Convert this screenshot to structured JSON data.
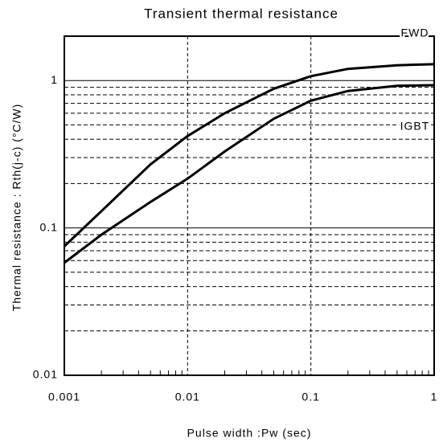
{
  "chart_data": {
    "type": "line",
    "title": "Transient thermal resistance",
    "xlabel": "Pulse width :Pw (sec)",
    "ylabel": "Thermal resistance : Rth(j-c)   (°C/W)",
    "xscale": "log",
    "yscale": "log",
    "x": [
      0.001,
      0.002,
      0.005,
      0.01,
      0.02,
      0.05,
      0.1,
      0.2,
      0.5,
      1
    ],
    "series": [
      {
        "name": "FWD",
        "color": "#000000",
        "values": [
          0.075,
          0.13,
          0.27,
          0.42,
          0.6,
          0.88,
          1.07,
          1.2,
          1.27,
          1.29
        ]
      },
      {
        "name": "IGBT",
        "color": "#000000",
        "values": [
          0.058,
          0.09,
          0.15,
          0.216,
          0.33,
          0.55,
          0.73,
          0.85,
          0.92,
          0.93
        ]
      }
    ],
    "xlim": [
      0.001,
      1
    ],
    "ylim": [
      0.01,
      2
    ],
    "xticks": [
      0.001,
      0.01,
      0.1,
      1
    ],
    "yticks": [
      0.01,
      0.1,
      1
    ],
    "x_minor_ticks": [
      0.002,
      0.003,
      0.004,
      0.005,
      0.006,
      0.007,
      0.008,
      0.009,
      0.02,
      0.03,
      0.04,
      0.05,
      0.06,
      0.07,
      0.08,
      0.09,
      0.2,
      0.3,
      0.4,
      0.5,
      0.6,
      0.7,
      0.8,
      0.9
    ],
    "y_minor_grid": [
      0.02,
      0.03,
      0.04,
      0.05,
      0.06,
      0.07,
      0.08,
      0.09,
      0.2,
      0.3,
      0.4,
      0.5,
      0.6,
      0.7,
      0.8,
      0.9
    ],
    "grid": true
  }
}
